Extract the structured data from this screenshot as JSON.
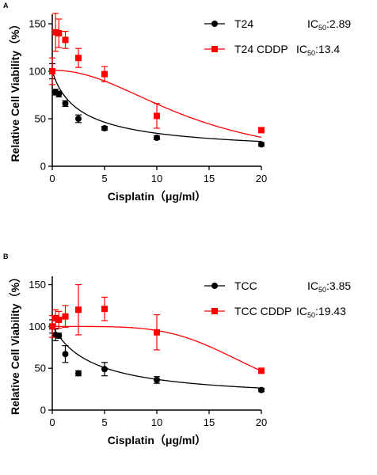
{
  "chart_data": [
    {
      "panel": "A",
      "type": "scatter",
      "xlabel": "Cisplatin（μg/ml）",
      "ylabel": "Relative Cell Viability（%）",
      "xlim": [
        0,
        20
      ],
      "ylim": [
        0,
        160
      ],
      "xticks": [
        0,
        5,
        10,
        15,
        20
      ],
      "yticks": [
        0,
        50,
        100,
        150
      ],
      "legend_position": "top-right",
      "series": [
        {
          "name": "T24",
          "marker": "circle",
          "color": "#000000",
          "ic50_prefix": "IC",
          "ic50_sub": "50",
          "ic50_value": ":2.89",
          "ic50": 2.89,
          "points": [
            {
              "x": 0,
              "y": 100,
              "err": 8
            },
            {
              "x": 0.31,
              "y": 78,
              "err": 3
            },
            {
              "x": 0.63,
              "y": 76,
              "err": 3
            },
            {
              "x": 1.25,
              "y": 66,
              "err": 3
            },
            {
              "x": 2.5,
              "y": 50,
              "err": 4
            },
            {
              "x": 5,
              "y": 40,
              "err": 2
            },
            {
              "x": 10,
              "y": 30,
              "err": 2
            },
            {
              "x": 20,
              "y": 23,
              "err": 2
            }
          ],
          "curve": {
            "top": 101,
            "bottom": 13,
            "ic50": 2.89,
            "hill": 0.9
          }
        },
        {
          "name": "T24 CDDP",
          "marker": "square",
          "color": "#ff0000",
          "ic50_prefix": "IC",
          "ic50_sub": "50",
          "ic50_value": ":13.4",
          "ic50": 13.4,
          "points": [
            {
              "x": 0,
              "y": 100,
              "err": 14
            },
            {
              "x": 0.31,
              "y": 141,
              "err": 20
            },
            {
              "x": 0.63,
              "y": 140,
              "err": 15
            },
            {
              "x": 1.25,
              "y": 133,
              "err": 9
            },
            {
              "x": 2.5,
              "y": 114,
              "err": 10
            },
            {
              "x": 5,
              "y": 97,
              "err": 8
            },
            {
              "x": 10,
              "y": 53,
              "err": 13
            },
            {
              "x": 20,
              "y": 38,
              "err": 2
            }
          ],
          "curve": {
            "top": 101,
            "bottom": 0,
            "ic50": 13.4,
            "hill": 2.1
          }
        }
      ]
    },
    {
      "panel": "B",
      "type": "scatter",
      "xlabel": "Cisplatin（μg/ml）",
      "ylabel": "Relative Cell Viability（%）",
      "xlim": [
        0,
        20
      ],
      "ylim": [
        0,
        160
      ],
      "xticks": [
        0,
        5,
        10,
        15,
        20
      ],
      "yticks": [
        0,
        50,
        100,
        150
      ],
      "legend_position": "top-right",
      "series": [
        {
          "name": "TCC",
          "marker": "circle",
          "color": "#000000",
          "ic50_prefix": "IC",
          "ic50_sub": "50",
          "ic50_value": ":3.85",
          "ic50": 3.85,
          "points": [
            {
              "x": 0,
              "y": 100,
              "err": 8
            },
            {
              "x": 0.31,
              "y": 90,
              "err": 7
            },
            {
              "x": 0.63,
              "y": 89,
              "err": 3
            },
            {
              "x": 1.25,
              "y": 67,
              "err": 10
            },
            {
              "x": 2.5,
              "y": 44,
              "err": 3
            },
            {
              "x": 5,
              "y": 49,
              "err": 8
            },
            {
              "x": 10,
              "y": 36,
              "err": 4
            },
            {
              "x": 20,
              "y": 24,
              "err": 2
            }
          ],
          "curve": {
            "top": 101,
            "bottom": 12,
            "ic50": 3.85,
            "hill": 1.0
          }
        },
        {
          "name": "TCC CDDP",
          "marker": "square",
          "color": "#ff0000",
          "ic50_prefix": "IC",
          "ic50_sub": "50",
          "ic50_value": ":19.43",
          "ic50": 19.43,
          "points": [
            {
              "x": 0,
              "y": 100,
              "err": 13
            },
            {
              "x": 0.31,
              "y": 110,
              "err": 10
            },
            {
              "x": 0.63,
              "y": 108,
              "err": 10
            },
            {
              "x": 1.25,
              "y": 112,
              "err": 13
            },
            {
              "x": 2.5,
              "y": 120,
              "err": 30
            },
            {
              "x": 5,
              "y": 121,
              "err": 14
            },
            {
              "x": 10,
              "y": 93,
              "err": 21
            },
            {
              "x": 20,
              "y": 47,
              "err": 2
            }
          ],
          "curve": {
            "top": 100,
            "bottom": 0,
            "ic50": 19.43,
            "hill": 4.5
          }
        }
      ]
    }
  ]
}
